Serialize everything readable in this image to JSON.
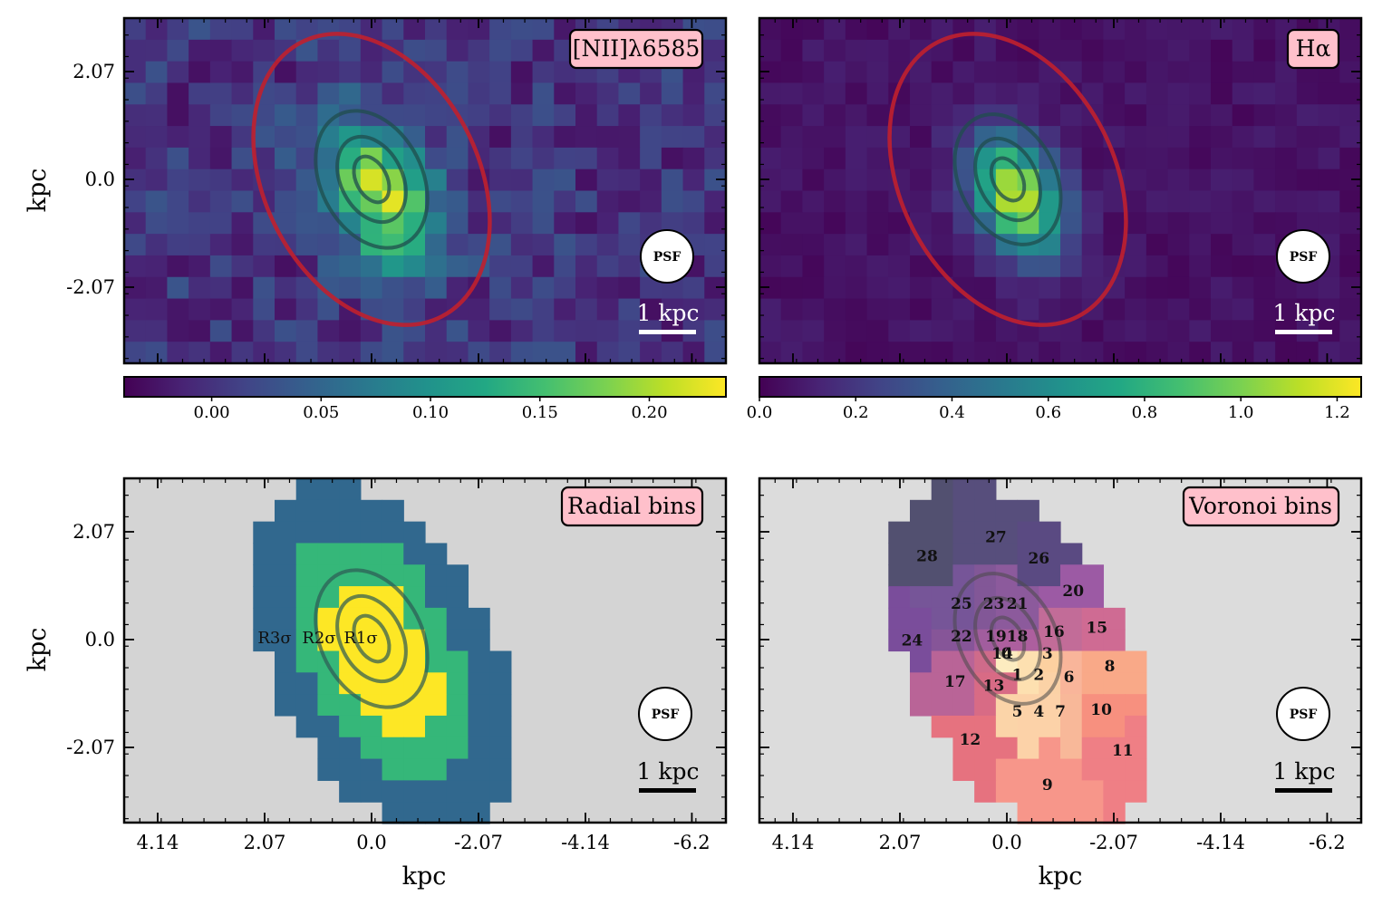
{
  "figure": {
    "x_axis_label": "kpc",
    "y_axis_label": "kpc",
    "x_tick_labels": [
      "4.14",
      "2.07",
      "0.0",
      "-2.07",
      "-4.14",
      "-6.2"
    ],
    "y_tick_labels": [
      "2.07",
      "0.0",
      "-2.07"
    ],
    "psf_label": "PSF",
    "scale_bar_label": "1 kpc"
  },
  "chart_data": [
    {
      "type": "heatmap",
      "title": "[NII]λ6585",
      "xlabel": "",
      "ylabel": "kpc",
      "x_ticks": [
        4.14,
        2.07,
        0.0,
        -2.07,
        -4.14,
        -6.2
      ],
      "y_ticks": [
        2.07,
        0.0,
        -2.07
      ],
      "colormap": "viridis",
      "colorbar": {
        "range": [
          -0.04,
          0.235
        ],
        "ticks": [
          "0.00",
          "0.05",
          "0.10",
          "0.15",
          "0.20"
        ]
      },
      "ellipse_color": "#c0202e",
      "contour_levels": 3
    },
    {
      "type": "heatmap",
      "title": "Hα",
      "xlabel": "",
      "ylabel": "",
      "x_ticks": [
        4.14,
        2.07,
        0.0,
        -2.07,
        -4.14,
        -6.2
      ],
      "y_ticks": [
        2.07,
        0.0,
        -2.07
      ],
      "colormap": "viridis",
      "colorbar": {
        "range": [
          0.0,
          1.25
        ],
        "ticks": [
          "0.0",
          "0.2",
          "0.4",
          "0.6",
          "0.8",
          "1.0",
          "1.2"
        ]
      },
      "ellipse_color": "#c0202e",
      "contour_levels": 3
    },
    {
      "type": "heatmap",
      "title": "Radial bins",
      "xlabel": "kpc",
      "ylabel": "kpc",
      "x_ticks": [
        4.14,
        2.07,
        0.0,
        -2.07,
        -4.14,
        -6.2
      ],
      "y_ticks": [
        2.07,
        0.0,
        -2.07
      ],
      "bins": [
        {
          "label": "R1σ",
          "color": "#fde725"
        },
        {
          "label": "R2σ",
          "color": "#35b779"
        },
        {
          "label": "R3σ",
          "color": "#31688e"
        }
      ]
    },
    {
      "type": "heatmap",
      "title": "Voronoi bins",
      "xlabel": "kpc",
      "ylabel": "",
      "x_ticks": [
        4.14,
        2.07,
        0.0,
        -2.07,
        -4.14,
        -6.2
      ],
      "y_ticks": [
        2.07,
        0.0,
        -2.07
      ],
      "bin_labels": [
        "0",
        "1",
        "2",
        "3",
        "4",
        "5",
        "6",
        "7",
        "8",
        "9",
        "10",
        "11",
        "12",
        "13",
        "14",
        "15",
        "16",
        "17",
        "18",
        "19",
        "20",
        "21",
        "22",
        "23",
        "24",
        "25",
        "26",
        "27",
        "28"
      ]
    }
  ]
}
